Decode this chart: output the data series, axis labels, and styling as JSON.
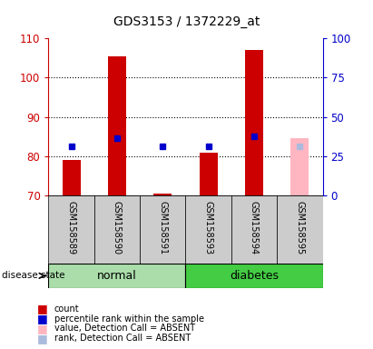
{
  "title": "GDS3153 / 1372229_at",
  "samples": [
    "GSM158589",
    "GSM158590",
    "GSM158591",
    "GSM158593",
    "GSM158594",
    "GSM158595"
  ],
  "ylim_left": [
    70,
    110
  ],
  "ylim_right": [
    0,
    100
  ],
  "yticks_left": [
    70,
    80,
    90,
    100,
    110
  ],
  "yticks_right": [
    0,
    25,
    50,
    75,
    100
  ],
  "left_color": "#cc0000",
  "right_color": "#0000cc",
  "bar_bottom": 70,
  "bar_data_order": [
    "GSM158589",
    "GSM158590",
    "GSM158591",
    "GSM158593",
    "GSM158594",
    "GSM158595"
  ],
  "count_values": [
    79.0,
    105.5,
    70.5,
    81.0,
    107.0,
    84.5
  ],
  "percentile_mapped": [
    82.5,
    84.5,
    82.5,
    82.5,
    85.0,
    82.5
  ],
  "absent_flags": [
    false,
    false,
    false,
    false,
    false,
    true
  ],
  "bar_width": 0.4,
  "legend_items": [
    {
      "label": "count",
      "color": "#cc0000"
    },
    {
      "label": "percentile rank within the sample",
      "color": "#0000cc"
    },
    {
      "label": "value, Detection Call = ABSENT",
      "color": "#ffb6c1"
    },
    {
      "label": "rank, Detection Call = ABSENT",
      "color": "#aabbdd"
    }
  ],
  "normal_color": "#aaddaa",
  "diabetes_color": "#44cc44",
  "label_bg_color": "#cccccc"
}
